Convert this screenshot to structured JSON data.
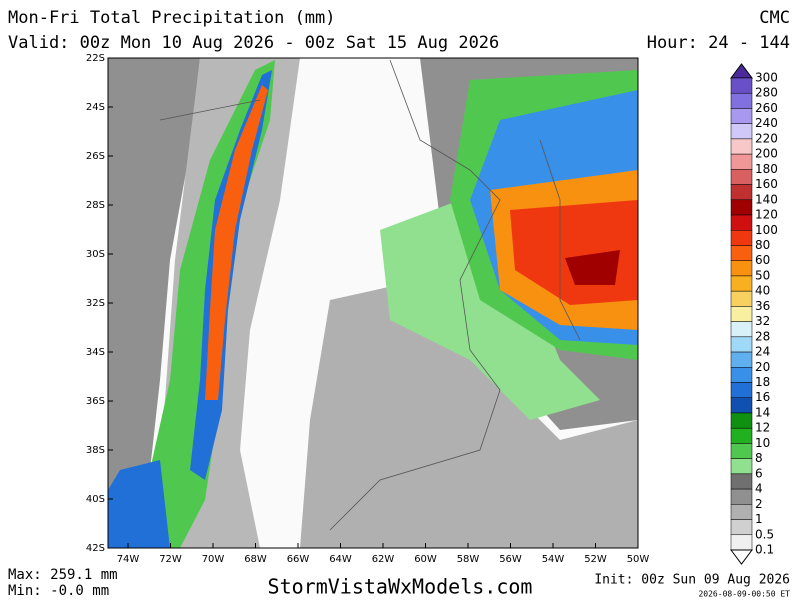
{
  "header": {
    "title": "Mon-Fri Total Precipitation (mm)",
    "model": "CMC",
    "valid": "Valid: 00z Mon 10 Aug 2026 - 00z Sat 15 Aug 2026",
    "hour": "Hour: 24 - 144"
  },
  "map": {
    "lat_labels": [
      "22S",
      "24S",
      "26S",
      "28S",
      "30S",
      "32S",
      "34S",
      "36S",
      "38S",
      "40S",
      "42S"
    ],
    "lon_labels": [
      "74W",
      "72W",
      "70W",
      "68W",
      "66W",
      "64W",
      "62W",
      "60W",
      "58W",
      "56W",
      "54W",
      "52W",
      "50W"
    ]
  },
  "legend": {
    "levels": [
      300,
      280,
      260,
      240,
      220,
      200,
      180,
      160,
      140,
      120,
      100,
      80,
      60,
      50,
      40,
      36,
      32,
      28,
      24,
      20,
      18,
      16,
      14,
      12,
      10,
      8,
      6,
      4,
      2,
      1,
      0.5,
      0.1
    ],
    "colors": [
      "#4a2a9a",
      "#6a50c8",
      "#8070e0",
      "#a898f0",
      "#d0c8f8",
      "#f8c8c8",
      "#f09898",
      "#d86060",
      "#c03030",
      "#a00000",
      "#d01010",
      "#f03810",
      "#f86010",
      "#f89010",
      "#f8b020",
      "#f8d060",
      "#f8f0a0",
      "#d8f0f8",
      "#a0d8f8",
      "#60b0f0",
      "#3890e8",
      "#2070d8",
      "#1050b0",
      "#109010",
      "#20b020",
      "#50c850",
      "#90e090",
      "#707070",
      "#909090",
      "#b0b0b0",
      "#d0d0d0",
      "#f0f0f0"
    ]
  },
  "footer": {
    "max": "Max: 259.1 mm",
    "min": "Min: -0.0 mm",
    "site": "StormVistaWxModels.com",
    "init": "Init: 00z Sun 09 Aug 2026",
    "stamp": "2026-08-09-00:50 ET"
  }
}
